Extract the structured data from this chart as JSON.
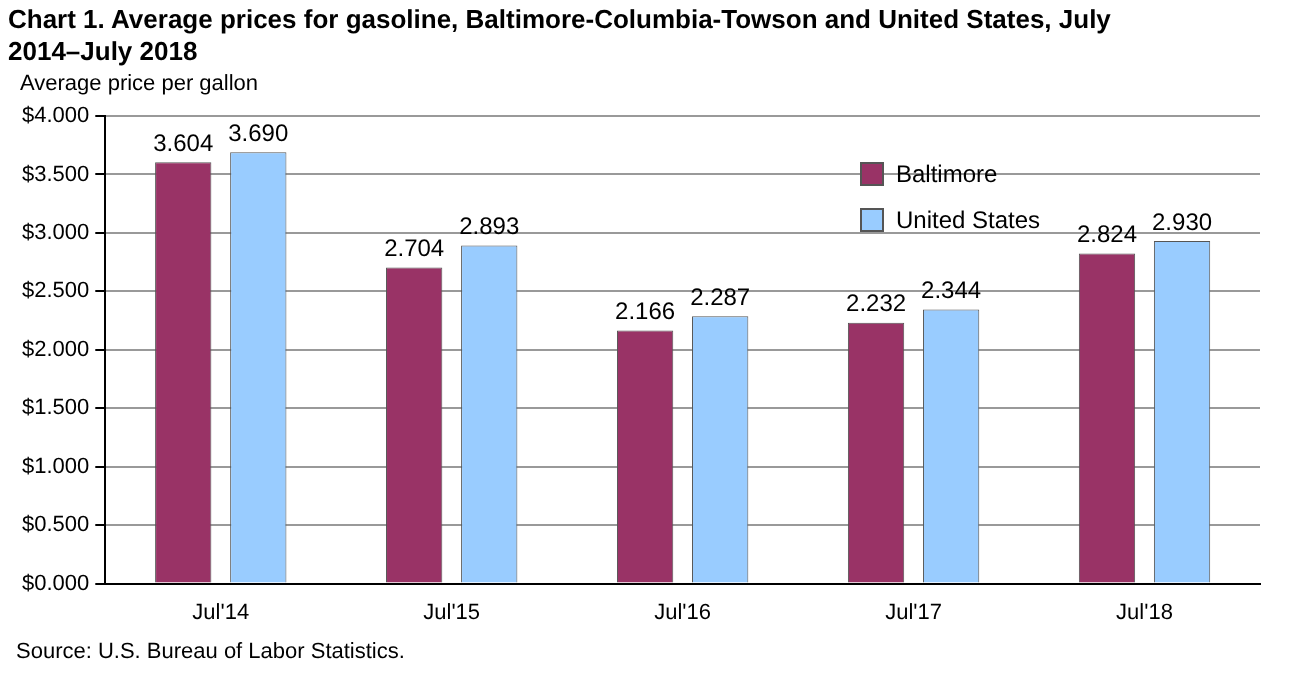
{
  "chart_data": {
    "type": "bar",
    "title": "Chart 1. Average prices for gasoline, Baltimore-Columbia-Towson  and United States, July 2014–July 2018",
    "ylabel": "Average price per gallon",
    "categories": [
      "Jul'14",
      "Jul'15",
      "Jul'16",
      "Jul'17",
      "Jul'18"
    ],
    "series": [
      {
        "name": "Baltimore",
        "color": "#993366",
        "values": [
          3.604,
          2.704,
          2.166,
          2.232,
          2.824
        ],
        "value_labels": [
          "3.604",
          "2.704",
          "2.166",
          "2.232",
          "2.824"
        ]
      },
      {
        "name": "United States",
        "color": "#99ccff",
        "values": [
          3.69,
          2.893,
          2.287,
          2.344,
          2.93
        ],
        "value_labels": [
          "3.690",
          "2.893",
          "2.287",
          "2.344",
          "2.930"
        ]
      }
    ],
    "ylim": [
      0,
      4
    ],
    "yticks": [
      {
        "value": 0,
        "label": "$0.000"
      },
      {
        "value": 0.5,
        "label": "$0.500"
      },
      {
        "value": 1,
        "label": "$1.000"
      },
      {
        "value": 1.5,
        "label": "$1.500"
      },
      {
        "value": 2,
        "label": "$2.000"
      },
      {
        "value": 2.5,
        "label": "$2.500"
      },
      {
        "value": 3,
        "label": "$3.000"
      },
      {
        "value": 3.5,
        "label": "$3.500"
      },
      {
        "value": 4,
        "label": "$4.000"
      }
    ],
    "grid": "y",
    "legend": "top right",
    "annotations": [
      "Source: U.S. Bureau of Labor Statistics."
    ]
  }
}
